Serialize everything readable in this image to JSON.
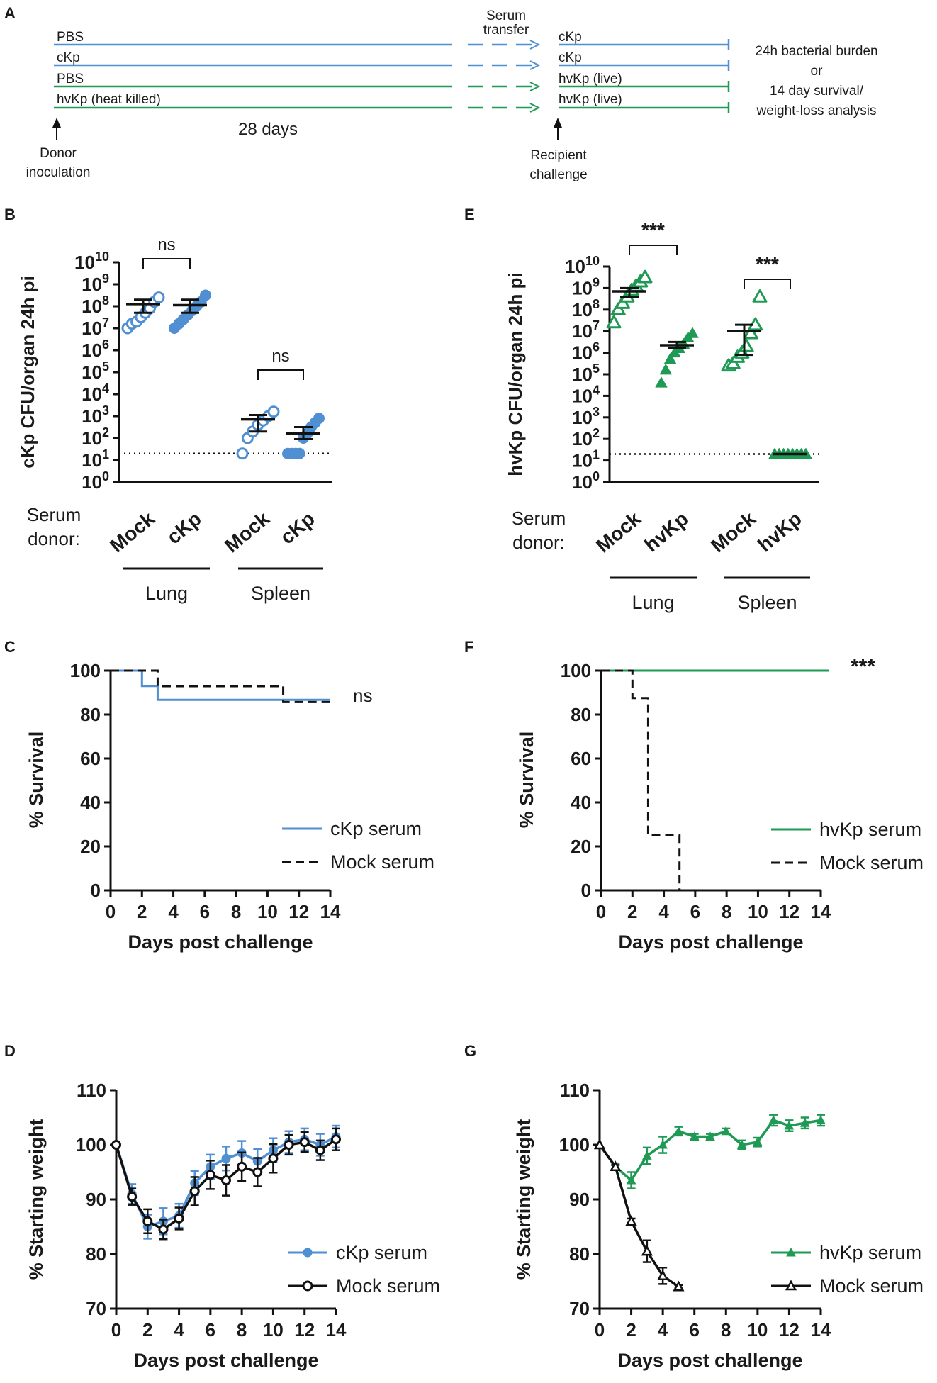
{
  "colors": {
    "blue": "#4f8fd2",
    "green": "#1f9a55",
    "black": "#111111"
  },
  "panelA": {
    "label": "A",
    "rows": [
      {
        "donor": "PBS",
        "recipient": "cKp",
        "color": "blue"
      },
      {
        "donor": "cKp",
        "recipient": "cKp",
        "color": "blue"
      },
      {
        "donor": "PBS",
        "recipient": "hvKp (live)",
        "color": "green"
      },
      {
        "donor": "hvKp (heat killed)",
        "recipient": "hvKp (live)",
        "color": "green"
      }
    ],
    "serum_transfer": [
      "Serum",
      "transfer"
    ],
    "days": "28 days",
    "donor_inoculation": [
      "Donor",
      "inoculation"
    ],
    "recipient_challenge": [
      "Recipient",
      "challenge"
    ],
    "outcome": [
      "24h bacterial burden",
      "or",
      "14 day survival/",
      "weight-loss analysis"
    ]
  },
  "chart_data": [
    {
      "id": "B",
      "type": "scatter",
      "label": "B",
      "ylabel": "cKp CFU/organ 24h pi",
      "yscale": "log10",
      "ylim": [
        0,
        10
      ],
      "yticks": [
        "10^0",
        "10^1",
        "10^2",
        "10^3",
        "10^4",
        "10^5",
        "10^6",
        "10^7",
        "10^8",
        "10^9",
        "10^10"
      ],
      "detection_limit_log": 1.3,
      "serum_donor_label": [
        "Serum",
        "donor:"
      ],
      "categories": [
        "Mock",
        "cKp",
        "Mock",
        "cKp"
      ],
      "organs": [
        {
          "name": "Lung",
          "cats": [
            0,
            1
          ]
        },
        {
          "name": "Spleen",
          "cats": [
            2,
            3
          ]
        }
      ],
      "series": [
        {
          "name": "Lung Mock",
          "cat": 0,
          "color": "blue",
          "marker": "circle-open",
          "log_values": [
            7.0,
            7.2,
            7.3,
            7.5,
            7.7,
            7.9,
            8.2,
            8.4
          ],
          "mean_log": 8.1,
          "err_log": [
            7.7,
            8.3
          ]
        },
        {
          "name": "Lung cKp",
          "cat": 1,
          "color": "blue",
          "marker": "circle-filled",
          "log_values": [
            7.0,
            7.2,
            7.4,
            7.6,
            7.8,
            8.0,
            8.2,
            8.5
          ],
          "mean_log": 8.05,
          "err_log": [
            7.7,
            8.3
          ]
        },
        {
          "name": "Spleen Mock",
          "cat": 2,
          "color": "blue",
          "marker": "circle-open",
          "log_values": [
            1.3,
            2.0,
            2.3,
            2.6,
            2.8,
            3.0,
            3.2
          ],
          "mean_log": 2.85,
          "err_log": [
            2.3,
            3.05
          ]
        },
        {
          "name": "Spleen cKp",
          "cat": 3,
          "color": "blue",
          "marker": "circle-filled",
          "log_values": [
            1.3,
            1.3,
            1.3,
            1.3,
            2.0,
            2.2,
            2.5,
            2.7,
            2.9
          ],
          "mean_log": 2.2,
          "err_log": [
            1.95,
            2.5
          ]
        }
      ],
      "significance": [
        {
          "cats": [
            0,
            1
          ],
          "label": "ns"
        },
        {
          "cats": [
            2,
            3
          ],
          "label": "ns"
        }
      ]
    },
    {
      "id": "E",
      "type": "scatter",
      "label": "E",
      "ylabel": "hvKp CFU/organ 24h pi",
      "yscale": "log10",
      "ylim": [
        0,
        10
      ],
      "yticks": [
        "10^0",
        "10^1",
        "10^2",
        "10^3",
        "10^4",
        "10^5",
        "10^6",
        "10^7",
        "10^8",
        "10^9",
        "10^10"
      ],
      "detection_limit_log": 1.3,
      "serum_donor_label": [
        "Serum",
        "donor:"
      ],
      "categories": [
        "Mock",
        "hvKp",
        "Mock",
        "hvKp"
      ],
      "organs": [
        {
          "name": "Lung",
          "cats": [
            0,
            1
          ]
        },
        {
          "name": "Spleen",
          "cats": [
            2,
            3
          ]
        }
      ],
      "series": [
        {
          "name": "Lung Mock",
          "cat": 0,
          "color": "green",
          "marker": "triangle-open",
          "log_values": [
            7.4,
            8.0,
            8.3,
            8.6,
            8.9,
            9.1,
            9.3,
            9.5
          ],
          "mean_log": 8.85,
          "err_log": [
            8.6,
            9.0
          ]
        },
        {
          "name": "Lung hvKp",
          "cat": 1,
          "color": "green",
          "marker": "triangle-filled",
          "log_values": [
            4.6,
            5.2,
            5.7,
            6.0,
            6.2,
            6.4,
            6.7,
            6.9
          ],
          "mean_log": 6.35,
          "err_log": [
            6.2,
            6.5
          ]
        },
        {
          "name": "Spleen Mock",
          "cat": 2,
          "color": "green",
          "marker": "triangle-open",
          "log_values": [
            5.4,
            5.5,
            5.8,
            6.0,
            6.3,
            6.9,
            7.3,
            8.6
          ],
          "mean_log": 7.0,
          "err_log": [
            5.9,
            7.3
          ]
        },
        {
          "name": "Spleen hvKp",
          "cat": 3,
          "color": "green",
          "marker": "triangle-filled",
          "log_values": [
            1.3,
            1.3,
            1.3,
            1.3,
            1.3,
            1.3,
            1.3,
            1.3
          ],
          "mean_log": 1.3,
          "err_log": [
            1.3,
            1.3
          ]
        }
      ],
      "significance": [
        {
          "cats": [
            0,
            1
          ],
          "label": "***"
        },
        {
          "cats": [
            2,
            3
          ],
          "label": "***"
        }
      ]
    },
    {
      "id": "C",
      "type": "line",
      "label": "C",
      "ylabel": "% Survival",
      "xlabel": "Days post challenge",
      "xlim": [
        0,
        14
      ],
      "ylim": [
        0,
        100
      ],
      "xticks": [
        0,
        2,
        4,
        6,
        8,
        10,
        12,
        14
      ],
      "yticks": [
        0,
        20,
        40,
        60,
        80,
        100
      ],
      "series": [
        {
          "name": "cKp serum",
          "color": "blue",
          "style": "solid",
          "x": [
            0,
            2,
            3,
            14
          ],
          "y": [
            100,
            93,
            86.7,
            86.7
          ]
        },
        {
          "name": "Mock serum",
          "color": "black",
          "style": "dashed",
          "x": [
            0,
            3,
            11,
            14
          ],
          "y": [
            100,
            92.9,
            85.7,
            85.7
          ]
        }
      ],
      "annotation": "ns"
    },
    {
      "id": "F",
      "type": "line",
      "label": "F",
      "ylabel": "% Survival",
      "xlabel": "Days post challenge",
      "xlim": [
        0,
        14
      ],
      "ylim": [
        0,
        100
      ],
      "xticks": [
        0,
        2,
        4,
        6,
        8,
        10,
        12,
        14
      ],
      "yticks": [
        0,
        20,
        40,
        60,
        80,
        100
      ],
      "series": [
        {
          "name": "hvKp serum",
          "color": "green",
          "style": "solid",
          "x": [
            0,
            14.5
          ],
          "y": [
            100,
            100
          ]
        },
        {
          "name": "Mock serum",
          "color": "black",
          "style": "dashed",
          "x": [
            0,
            2,
            3,
            5
          ],
          "y": [
            100,
            87.5,
            25,
            0
          ]
        }
      ],
      "annotation": "***"
    },
    {
      "id": "D",
      "type": "line",
      "label": "D",
      "ylabel": "% Starting weight",
      "xlabel": "Days post challenge",
      "xlim": [
        0,
        14
      ],
      "ylim": [
        70,
        110
      ],
      "xticks": [
        0,
        2,
        4,
        6,
        8,
        10,
        12,
        14
      ],
      "yticks": [
        70,
        80,
        90,
        100,
        110
      ],
      "series": [
        {
          "name": "cKp serum",
          "color": "blue",
          "marker": "circle-filled",
          "x": [
            0,
            1,
            2,
            3,
            4,
            5,
            6,
            7,
            8,
            9,
            10,
            11,
            12,
            13,
            14
          ],
          "y": [
            100,
            91,
            85,
            86,
            87,
            93,
            96,
            97.5,
            98.5,
            97,
            99,
            100.5,
            101,
            100,
            101.5
          ],
          "err": [
            0,
            1.8,
            2.2,
            2.4,
            2.2,
            2.2,
            2.2,
            2.2,
            2.2,
            2.2,
            2.2,
            2.0,
            2.0,
            2.0,
            2.0
          ]
        },
        {
          "name": "Mock serum",
          "color": "black",
          "marker": "circle-open",
          "x": [
            0,
            1,
            2,
            3,
            4,
            5,
            6,
            7,
            8,
            9,
            10,
            11,
            12,
            13,
            14
          ],
          "y": [
            100,
            90.5,
            86,
            84.5,
            86.5,
            91.5,
            94.5,
            93.5,
            96,
            95,
            97.5,
            100,
            100.5,
            99,
            101
          ],
          "err": [
            0,
            1.5,
            2.2,
            1.8,
            2.0,
            2.6,
            2.6,
            2.8,
            2.6,
            2.6,
            2.6,
            1.8,
            1.8,
            1.8,
            2.0
          ]
        }
      ]
    },
    {
      "id": "G",
      "type": "line",
      "label": "G",
      "ylabel": "% Starting weight",
      "xlabel": "Days post challenge",
      "xlim": [
        0,
        14
      ],
      "ylim": [
        70,
        110
      ],
      "xticks": [
        0,
        2,
        4,
        6,
        8,
        10,
        12,
        14
      ],
      "yticks": [
        70,
        80,
        90,
        100,
        110
      ],
      "series": [
        {
          "name": "hvKp serum",
          "color": "green",
          "marker": "triangle-filled",
          "x": [
            0,
            1,
            2,
            3,
            4,
            5,
            6,
            7,
            8,
            9,
            10,
            11,
            12,
            13,
            14
          ],
          "y": [
            100,
            96,
            93.5,
            98,
            100,
            102.5,
            101.5,
            101.5,
            102.5,
            100,
            100.5,
            104.5,
            103.5,
            104,
            104.5
          ],
          "err": [
            0,
            0.6,
            1.5,
            1.5,
            1.5,
            0.8,
            0.5,
            0.5,
            0.5,
            0.8,
            0.8,
            1.0,
            1.0,
            1.0,
            1.0
          ]
        },
        {
          "name": "Mock serum",
          "color": "black",
          "marker": "triangle-open",
          "x": [
            0,
            1,
            2,
            3,
            4,
            5
          ],
          "y": [
            100,
            96,
            86,
            80.5,
            76,
            74
          ],
          "err": [
            0,
            0.3,
            0.5,
            2.0,
            1.5,
            0.3
          ]
        }
      ]
    }
  ]
}
